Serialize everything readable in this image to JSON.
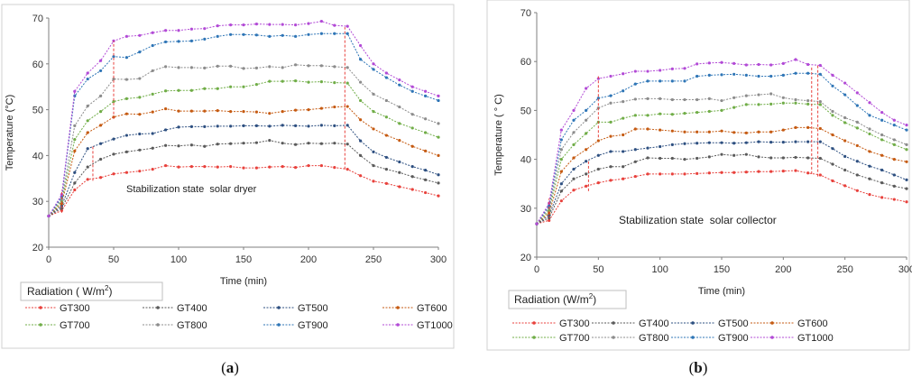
{
  "figure": {
    "captions": [
      {
        "open": "(",
        "letter": "a",
        "close": ")"
      },
      {
        "open": "(",
        "letter": "b",
        "close": ")"
      }
    ]
  },
  "chart_data": [
    {
      "type": "line",
      "annotation": "Stabilization state  solar dryer",
      "xlabel": "Time (min)",
      "ylabel": "Temperature (°C)",
      "xlim": [
        0,
        300
      ],
      "ylim": [
        20,
        70
      ],
      "xticks": [
        0,
        50,
        100,
        150,
        200,
        250,
        300
      ],
      "yticks": [
        20,
        30,
        40,
        50,
        60,
        70
      ],
      "grid": false,
      "legend": {
        "title": "Radiation ( W/m",
        "title_sup": "2",
        "title_end": ")",
        "position": "bottom"
      },
      "x": [
        0,
        10,
        20,
        30,
        40,
        50,
        60,
        70,
        80,
        90,
        100,
        110,
        120,
        130,
        140,
        150,
        160,
        170,
        180,
        190,
        200,
        210,
        220,
        230,
        240,
        250,
        260,
        270,
        280,
        290,
        300
      ],
      "series": [
        {
          "name": "GT300",
          "color": "#e8413c",
          "values": [
            26.8,
            28.0,
            32.5,
            34.8,
            35.2,
            36.0,
            36.3,
            36.6,
            37.0,
            37.8,
            37.5,
            37.6,
            37.6,
            37.5,
            37.6,
            37.3,
            37.3,
            37.5,
            37.6,
            37.4,
            37.8,
            37.8,
            37.4,
            37.0,
            35.6,
            34.4,
            33.9,
            33.2,
            32.6,
            31.9,
            31.2
          ]
        },
        {
          "name": "GT400",
          "color": "#5a5a5a",
          "values": [
            26.8,
            28.5,
            34.0,
            37.5,
            39.2,
            40.3,
            40.8,
            41.2,
            41.6,
            42.2,
            42.1,
            42.3,
            42.0,
            42.5,
            42.6,
            42.7,
            42.8,
            43.3,
            42.7,
            42.4,
            42.7,
            42.6,
            42.7,
            42.5,
            40.0,
            37.8,
            37.0,
            36.3,
            35.4,
            34.7,
            34.0
          ]
        },
        {
          "name": "GT500",
          "color": "#2d4f80",
          "values": [
            26.8,
            29.0,
            36.3,
            41.5,
            42.6,
            43.6,
            44.4,
            44.7,
            44.8,
            45.6,
            46.2,
            46.3,
            46.3,
            46.4,
            46.4,
            46.5,
            46.5,
            46.4,
            46.6,
            46.5,
            46.4,
            46.6,
            46.5,
            46.6,
            43.2,
            40.8,
            39.6,
            38.6,
            37.6,
            36.8,
            35.8
          ]
        },
        {
          "name": "GT600",
          "color": "#c55a11",
          "values": [
            26.8,
            29.5,
            41.0,
            45.0,
            46.6,
            48.4,
            49.1,
            49.0,
            49.5,
            50.2,
            49.7,
            49.7,
            49.7,
            49.8,
            49.6,
            49.6,
            49.5,
            49.2,
            49.6,
            49.9,
            50.0,
            50.3,
            50.6,
            50.7,
            47.8,
            45.8,
            44.4,
            43.3,
            42.0,
            41.0,
            40.0
          ]
        },
        {
          "name": "GT700",
          "color": "#70ad47",
          "values": [
            26.8,
            30.0,
            43.5,
            47.6,
            49.6,
            51.8,
            52.4,
            52.7,
            53.4,
            54.1,
            54.2,
            54.2,
            54.6,
            54.6,
            55.0,
            55.0,
            55.5,
            56.2,
            56.2,
            56.3,
            56.0,
            56.1,
            55.9,
            55.8,
            52.0,
            49.6,
            48.4,
            47.0,
            46.0,
            45.0,
            44.0
          ]
        },
        {
          "name": "GT800",
          "color": "#8c8c8c",
          "values": [
            26.8,
            30.5,
            46.5,
            50.8,
            53.0,
            56.7,
            56.6,
            56.8,
            58.5,
            59.4,
            59.2,
            59.2,
            59.1,
            59.5,
            59.5,
            59.0,
            59.1,
            59.4,
            59.2,
            59.8,
            59.6,
            59.6,
            59.4,
            59.2,
            56.0,
            53.4,
            52.0,
            50.6,
            49.0,
            48.0,
            47.0
          ]
        },
        {
          "name": "GT900",
          "color": "#2e75b6",
          "values": [
            26.8,
            31.0,
            53.0,
            56.7,
            58.5,
            61.6,
            61.4,
            62.6,
            64.0,
            64.8,
            64.9,
            65.0,
            65.4,
            66.0,
            66.4,
            66.4,
            66.3,
            66.0,
            66.2,
            66.0,
            66.4,
            66.6,
            66.6,
            66.6,
            61.0,
            58.8,
            57.0,
            55.4,
            54.0,
            53.0,
            52.0
          ]
        },
        {
          "name": "GT1000",
          "color": "#b24ad6",
          "values": [
            26.8,
            31.5,
            54.0,
            58.0,
            60.7,
            65.0,
            66.0,
            66.2,
            66.8,
            67.3,
            67.3,
            67.6,
            67.7,
            68.3,
            68.5,
            68.5,
            68.7,
            68.6,
            68.6,
            68.5,
            68.8,
            69.3,
            68.4,
            68.2,
            64.0,
            60.0,
            58.0,
            56.5,
            55.0,
            54.0,
            53.0
          ]
        }
      ],
      "stabilization_markers": [
        {
          "x": 10,
          "y_from": 27.5,
          "y_to": 32.5
        },
        {
          "x": 34,
          "y_from": 34.5,
          "y_to": 42.0
        },
        {
          "x": 50,
          "y_from": 48.0,
          "y_to": 65.0
        },
        {
          "x": 228,
          "y_from": 37.0,
          "y_to": 68.0
        }
      ]
    },
    {
      "type": "line",
      "annotation": "Stabilization state  solar collector",
      "xlabel": "Time  (min)",
      "ylabel": "Temperature ( ° C)",
      "xlim": [
        0,
        300
      ],
      "ylim": [
        20,
        70
      ],
      "xticks": [
        0,
        50,
        100,
        150,
        200,
        250,
        300
      ],
      "yticks": [
        20,
        30,
        40,
        50,
        60,
        70
      ],
      "grid": false,
      "legend": {
        "title": "Radiation (W/m",
        "title_sup": "2",
        "title_end": ")",
        "position": "bottom"
      },
      "x": [
        0,
        10,
        20,
        30,
        40,
        50,
        60,
        70,
        80,
        90,
        100,
        110,
        120,
        130,
        140,
        150,
        160,
        170,
        180,
        190,
        200,
        210,
        220,
        230,
        240,
        250,
        260,
        270,
        280,
        290,
        300
      ],
      "series": [
        {
          "name": "GT300",
          "color": "#e8413c",
          "values": [
            26.8,
            27.5,
            31.5,
            33.7,
            34.5,
            35.2,
            35.7,
            36.0,
            36.5,
            37.0,
            37.0,
            37.0,
            37.0,
            37.1,
            37.2,
            37.3,
            37.3,
            37.4,
            37.5,
            37.5,
            37.6,
            37.7,
            37.2,
            36.8,
            35.6,
            34.6,
            33.6,
            32.8,
            32.2,
            31.8,
            31.3
          ]
        },
        {
          "name": "GT400",
          "color": "#5a5a5a",
          "values": [
            26.8,
            28.0,
            33.5,
            36.0,
            37.0,
            38.0,
            38.5,
            38.5,
            39.5,
            40.3,
            40.2,
            40.2,
            40.0,
            40.2,
            40.5,
            41.0,
            40.8,
            41.0,
            40.5,
            40.3,
            40.3,
            40.4,
            40.3,
            40.2,
            39.0,
            37.8,
            36.8,
            36.0,
            35.2,
            34.5,
            34.0
          ]
        },
        {
          "name": "GT500",
          "color": "#2d4f80",
          "values": [
            26.8,
            28.5,
            35.0,
            38.0,
            39.6,
            40.8,
            41.6,
            41.6,
            42.0,
            42.3,
            42.6,
            43.0,
            43.2,
            43.3,
            43.4,
            43.4,
            43.3,
            43.4,
            43.6,
            43.5,
            43.5,
            43.6,
            43.6,
            43.6,
            42.2,
            40.6,
            39.6,
            38.6,
            37.8,
            36.8,
            35.8
          ]
        },
        {
          "name": "GT600",
          "color": "#c55a11",
          "values": [
            26.8,
            29.0,
            37.5,
            40.3,
            42.0,
            43.8,
            44.7,
            45.0,
            46.2,
            46.2,
            46.0,
            45.8,
            45.6,
            45.6,
            45.6,
            45.8,
            45.5,
            45.4,
            45.6,
            45.6,
            46.0,
            46.5,
            46.5,
            46.3,
            45.0,
            43.8,
            42.8,
            41.6,
            40.8,
            40.0,
            39.5
          ]
        },
        {
          "name": "GT700",
          "color": "#70ad47",
          "values": [
            26.8,
            29.5,
            40.0,
            43.0,
            45.3,
            47.6,
            47.6,
            48.4,
            49.0,
            49.0,
            49.3,
            49.2,
            49.4,
            49.6,
            49.8,
            50.0,
            50.6,
            51.2,
            51.2,
            51.3,
            51.5,
            51.5,
            51.3,
            51.2,
            49.0,
            47.5,
            46.4,
            45.2,
            44.0,
            43.0,
            42.0
          ]
        },
        {
          "name": "GT800",
          "color": "#8c8c8c",
          "values": [
            26.8,
            30.0,
            42.0,
            45.5,
            48.0,
            50.5,
            51.5,
            51.8,
            52.3,
            52.4,
            52.4,
            52.2,
            52.2,
            52.2,
            52.4,
            52.0,
            52.6,
            53.0,
            53.2,
            53.4,
            52.6,
            52.2,
            52.0,
            51.8,
            49.8,
            48.5,
            47.6,
            46.2,
            45.0,
            44.0,
            43.0
          ]
        },
        {
          "name": "GT900",
          "color": "#2e75b6",
          "values": [
            26.8,
            30.5,
            44.0,
            48.0,
            50.0,
            52.5,
            53.0,
            54.0,
            55.4,
            56.0,
            56.0,
            56.0,
            56.0,
            57.0,
            57.2,
            57.3,
            57.4,
            57.2,
            57.0,
            57.0,
            57.2,
            57.6,
            57.6,
            57.4,
            55.0,
            53.2,
            51.0,
            49.0,
            48.0,
            47.0,
            46.0
          ]
        },
        {
          "name": "GT1000",
          "color": "#b24ad6",
          "values": [
            26.8,
            31.0,
            46.0,
            50.0,
            54.5,
            56.5,
            57.0,
            57.5,
            58.0,
            58.0,
            58.2,
            58.5,
            58.6,
            59.5,
            59.7,
            59.8,
            59.6,
            59.3,
            59.4,
            59.3,
            59.6,
            60.4,
            59.4,
            59.2,
            57.2,
            55.6,
            53.6,
            51.6,
            49.6,
            48.0,
            47.0
          ]
        }
      ],
      "stabilization_markers": [
        {
          "x": 10,
          "y_from": 28.0,
          "y_to": 32.0
        },
        {
          "x": 42,
          "y_from": 33.5,
          "y_to": 40.0
        },
        {
          "x": 50,
          "y_from": 44.5,
          "y_to": 57.0
        },
        {
          "x": 223,
          "y_from": 37.0,
          "y_to": 59.0
        },
        {
          "x": 228,
          "y_from": 36.5,
          "y_to": 59.5
        }
      ]
    }
  ]
}
